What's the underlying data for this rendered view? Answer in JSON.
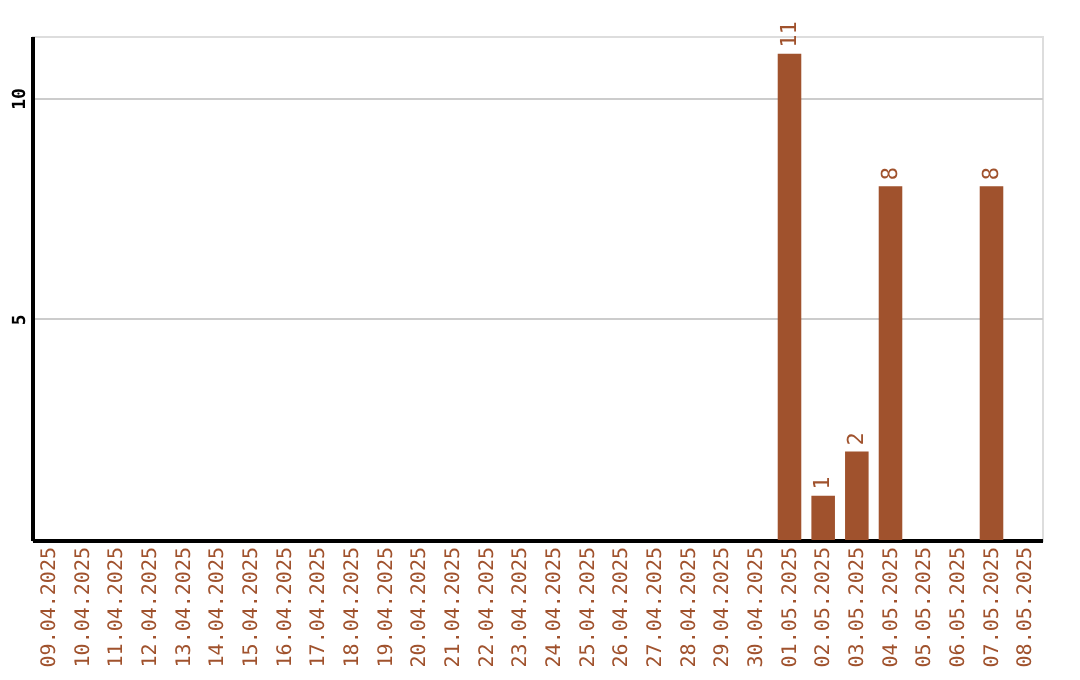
{
  "chart_data": {
    "type": "bar",
    "categories": [
      "09.04.2025",
      "10.04.2025",
      "11.04.2025",
      "12.04.2025",
      "13.04.2025",
      "14.04.2025",
      "15.04.2025",
      "16.04.2025",
      "17.04.2025",
      "18.04.2025",
      "19.04.2025",
      "20.04.2025",
      "21.04.2025",
      "22.04.2025",
      "23.04.2025",
      "24.04.2025",
      "25.04.2025",
      "26.04.2025",
      "27.04.2025",
      "28.04.2025",
      "29.04.2025",
      "30.04.2025",
      "01.05.2025",
      "02.05.2025",
      "03.05.2025",
      "04.05.2025",
      "05.05.2025",
      "06.05.2025",
      "07.05.2025",
      "08.05.2025"
    ],
    "values": [
      0,
      0,
      0,
      0,
      0,
      0,
      0,
      0,
      0,
      0,
      0,
      0,
      0,
      0,
      0,
      0,
      0,
      0,
      0,
      0,
      0,
      0,
      11,
      1,
      2,
      8,
      0,
      0,
      8,
      0
    ],
    "value_labels": [
      null,
      null,
      null,
      null,
      null,
      null,
      null,
      null,
      null,
      null,
      null,
      null,
      null,
      null,
      null,
      null,
      null,
      null,
      null,
      null,
      null,
      null,
      "11",
      "1",
      "2",
      "8",
      null,
      null,
      "8",
      null
    ],
    "color": "#a0522d",
    "ylim": [
      0,
      11.4
    ],
    "yticks": [
      5,
      10
    ],
    "grid": "y"
  }
}
